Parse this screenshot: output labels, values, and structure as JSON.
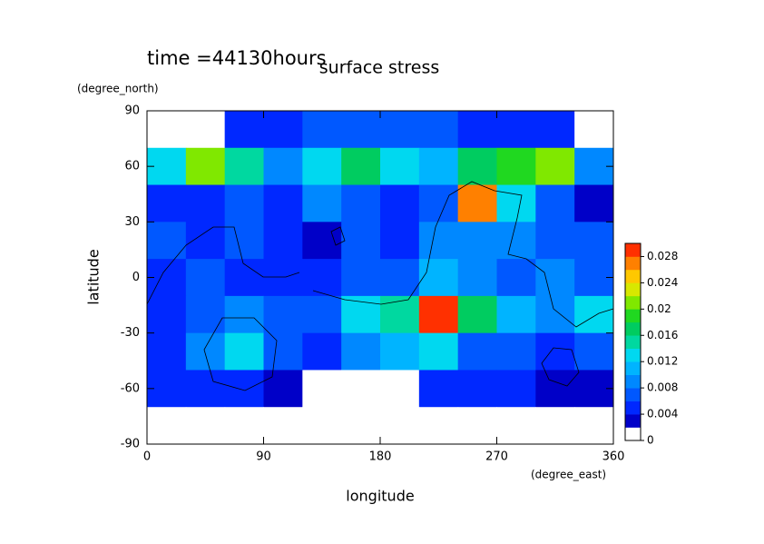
{
  "chart_data": {
    "type": "contour",
    "title": "surface stress",
    "subtitle": "time =44130hours",
    "x_label": "longitude",
    "x_units": "(degree_east)",
    "y_label": "latitude",
    "y_units": "(degree_north)",
    "xlim": [
      0,
      360
    ],
    "xticks": [
      0,
      90,
      180,
      270,
      360
    ],
    "ylim": [
      -90,
      90
    ],
    "yticks": [
      -90,
      -60,
      -30,
      0,
      30,
      60,
      90
    ],
    "x_edges": [
      0,
      30,
      60,
      90,
      120,
      150,
      180,
      210,
      240,
      270,
      300,
      330,
      360
    ],
    "y_edges": [
      90,
      70,
      50,
      30,
      10,
      -10,
      -30,
      -50,
      -70,
      -90
    ],
    "z": [
      [
        0,
        0,
        0.004,
        0.004,
        0.006,
        0.006,
        0.006,
        0.006,
        0.004,
        0.004,
        0.004,
        0
      ],
      [
        0.012,
        0.02,
        0.014,
        0.008,
        0.012,
        0.016,
        0.012,
        0.01,
        0.016,
        0.018,
        0.02,
        0.008
      ],
      [
        0.004,
        0.004,
        0.006,
        0.004,
        0.008,
        0.006,
        0.004,
        0.006,
        0.026,
        0.012,
        0.006,
        0.002
      ],
      [
        0.006,
        0.004,
        0.006,
        0.004,
        0.002,
        0.006,
        0.004,
        0.008,
        0.008,
        0.008,
        0.006,
        0.006
      ],
      [
        0.004,
        0.006,
        0.004,
        0.004,
        0.004,
        0.006,
        0.006,
        0.01,
        0.008,
        0.006,
        0.008,
        0.006
      ],
      [
        0.004,
        0.006,
        0.008,
        0.006,
        0.006,
        0.012,
        0.014,
        0.028,
        0.016,
        0.01,
        0.008,
        0.012
      ],
      [
        0.004,
        0.008,
        0.012,
        0.006,
        0.004,
        0.008,
        0.01,
        0.012,
        0.006,
        0.006,
        0.004,
        0.006
      ],
      [
        0.004,
        0.004,
        0.004,
        0.002,
        0,
        0,
        0,
        0.004,
        0.004,
        0.004,
        0.002,
        0.002
      ],
      [
        0,
        0,
        0,
        0,
        0,
        0,
        0,
        0,
        0,
        0,
        0,
        0
      ]
    ],
    "levels": [
      0,
      0.002,
      0.004,
      0.006,
      0.008,
      0.01,
      0.012,
      0.014,
      0.016,
      0.018,
      0.02,
      0.022,
      0.024,
      0.026,
      0.028,
      0.03
    ],
    "colors": [
      "#ffffff",
      "#0000c8",
      "#0028ff",
      "#0058ff",
      "#0088ff",
      "#00b4ff",
      "#00d8f0",
      "#00d8a0",
      "#00cc60",
      "#20d820",
      "#80e800",
      "#d8e800",
      "#ffc800",
      "#ff8000",
      "#ff3000"
    ],
    "zlim": [
      0,
      0.03
    ],
    "zticks": [
      0,
      0.004,
      0.008,
      0.012,
      0.016,
      0.02,
      0.024,
      0.028
    ]
  }
}
